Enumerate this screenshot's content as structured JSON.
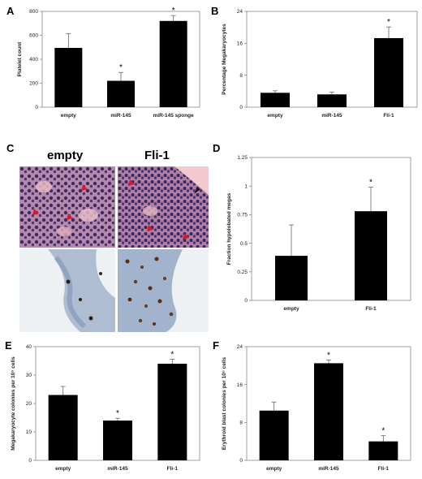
{
  "panels": {
    "a": "A",
    "b": "B",
    "c": "C",
    "d": "D",
    "e": "E",
    "f": "F"
  },
  "histology": {
    "left_label": "empty",
    "right_label": "Fli-1"
  },
  "chart_data": [
    {
      "id": "A",
      "type": "bar",
      "categories": [
        "empty",
        "miR-145",
        "miR-145 sponge"
      ],
      "values": [
        495,
        220,
        720
      ],
      "errors": [
        120,
        70,
        45
      ],
      "significant": [
        false,
        true,
        true
      ],
      "ylabel": "Platelet count",
      "xlabel": "",
      "ylim": [
        0,
        800
      ],
      "yticks": [
        "0",
        "200",
        "400",
        "600",
        "800"
      ],
      "grid": false,
      "marker": "*"
    },
    {
      "id": "B",
      "type": "bar",
      "categories": [
        "empty",
        "miR-145",
        "Fli-1"
      ],
      "values": [
        3.6,
        3.2,
        17.3
      ],
      "errors": [
        0.5,
        0.6,
        2.8
      ],
      "significant": [
        false,
        false,
        true
      ],
      "ylabel": "Percentage Megakaryocytes",
      "xlabel": "",
      "ylim": [
        0,
        24
      ],
      "yticks": [
        "0",
        "8",
        "16",
        "24"
      ],
      "grid": false,
      "marker": "*"
    },
    {
      "id": "D",
      "type": "bar",
      "categories": [
        "empty",
        "Fli-1"
      ],
      "values": [
        0.39,
        0.78
      ],
      "errors": [
        0.27,
        0.21
      ],
      "significant": [
        false,
        true
      ],
      "ylabel": "Fraction hypolobated megas",
      "xlabel": "",
      "ylim": [
        0,
        1.25
      ],
      "yticks": [
        "0",
        "0.25",
        "0.5",
        "0.75",
        "1",
        "1.25"
      ],
      "grid": false,
      "marker": "*"
    },
    {
      "id": "E",
      "type": "bar",
      "categories": [
        "empty",
        "miR-145",
        "Fli-1"
      ],
      "values": [
        23,
        14,
        34
      ],
      "errors": [
        3,
        0.8,
        1.6
      ],
      "significant": [
        false,
        true,
        true
      ],
      "ylabel": "Megakaryocyte colonies per 10⁵ cells",
      "xlabel": "",
      "ylim": [
        0,
        40
      ],
      "yticks": [
        "0",
        "10",
        "20",
        "30",
        "40"
      ],
      "grid": false,
      "marker": "*"
    },
    {
      "id": "F",
      "type": "bar",
      "categories": [
        "empty",
        "miR-145",
        "Fli-1"
      ],
      "values": [
        10.5,
        20.5,
        4
      ],
      "errors": [
        1.8,
        0.7,
        1.2
      ],
      "significant": [
        false,
        true,
        true
      ],
      "ylabel": "Erythroid blast colonies per 10⁵ cells",
      "xlabel": "",
      "ylim": [
        0,
        24
      ],
      "yticks": [
        "0",
        "8",
        "16",
        "24"
      ],
      "grid": false,
      "marker": "*"
    }
  ]
}
